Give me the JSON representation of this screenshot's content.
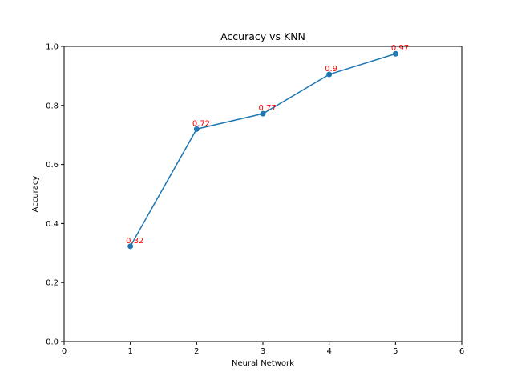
{
  "chart_data": {
    "type": "line",
    "title": "Accuracy vs KNN",
    "xlabel": "Neural Network",
    "ylabel": "Accuracy",
    "xlim": [
      0,
      6
    ],
    "ylim": [
      0,
      1
    ],
    "xticks": [
      0,
      1,
      2,
      3,
      4,
      5,
      6
    ],
    "yticks": [
      0.0,
      0.2,
      0.4,
      0.6,
      0.8,
      1.0
    ],
    "grid": false,
    "series": [
      {
        "x": [
          1,
          2,
          3,
          4,
          5
        ],
        "y": [
          0.323,
          0.72,
          0.772,
          0.905,
          0.975
        ],
        "labels": [
          "0.32",
          "0.72",
          "0.77",
          "0.9",
          "0.97"
        ]
      }
    ],
    "colors": {
      "line": "#1f77b4",
      "marker": "#1f77b4",
      "label": "#ff0000",
      "axis": "#000000"
    }
  }
}
